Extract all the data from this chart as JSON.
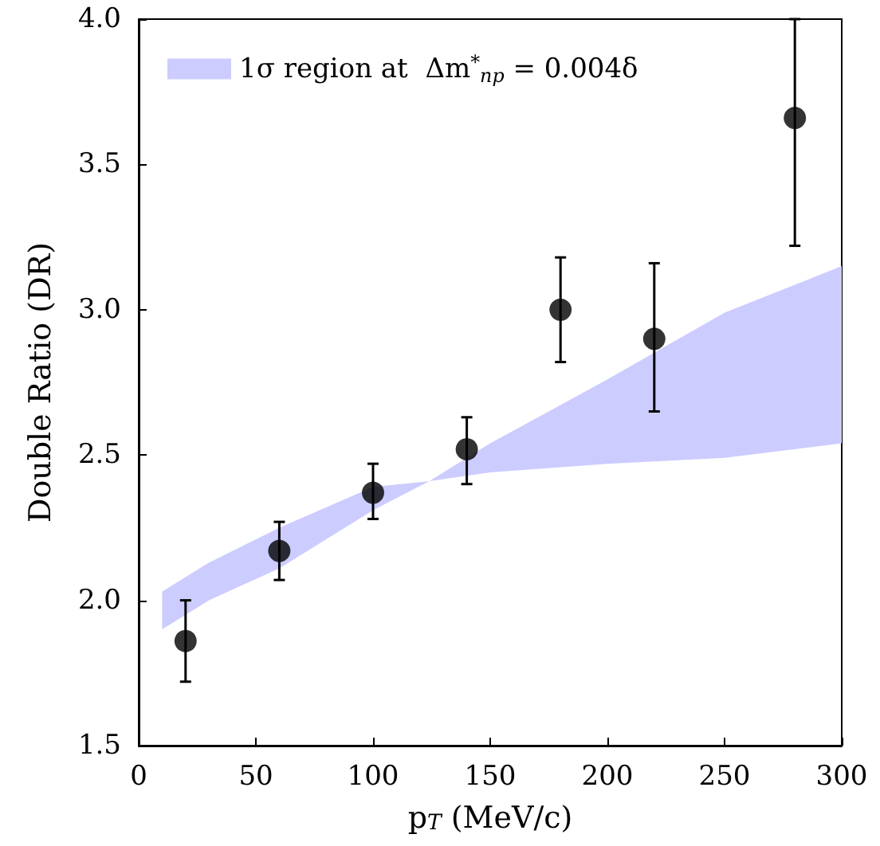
{
  "chart_data": {
    "type": "scatter",
    "xlabel": "p$_{T}$ (MeV/c)",
    "ylabel": "Double Ratio (DR)",
    "x": [
      20,
      60,
      100,
      140,
      180,
      220,
      280
    ],
    "series": [
      {
        "type": "area",
        "name": "1σ region at  Δm$^{*}$$_{np}$ = 0.004δ",
        "color": "#ccccff",
        "x": [
          10,
          30,
          60,
          100,
          124,
          150,
          200,
          250,
          300
        ],
        "values": [
          null,
          null,
          null,
          null,
          null,
          null,
          null,
          null,
          null
        ],
        "lower": [
          1.9,
          2.0,
          2.11,
          2.31,
          2.41,
          2.44,
          2.47,
          2.49,
          2.54
        ],
        "upper": [
          2.03,
          2.13,
          2.25,
          2.39,
          2.41,
          2.54,
          2.76,
          2.99,
          3.15
        ]
      },
      {
        "type": "scatter",
        "color": "#000000",
        "values": [
          1.86,
          2.17,
          2.37,
          2.52,
          3.0,
          2.9,
          3.66
        ],
        "errors": [
          [
            1.72,
            2.0
          ],
          [
            2.07,
            2.27
          ],
          [
            2.28,
            2.47
          ],
          [
            2.4,
            2.63
          ],
          [
            2.82,
            3.18
          ],
          [
            2.65,
            3.16
          ],
          [
            3.22,
            4.0
          ]
        ]
      }
    ],
    "xlim": [
      0,
      300
    ],
    "xticks": [
      0,
      50,
      100,
      150,
      200,
      250,
      300
    ],
    "ylim": [
      1.5,
      4.0
    ],
    "yticks": [
      1.5,
      {
        "value": 2,
        "label": "2.0"
      },
      2.5,
      {
        "value": 3,
        "label": "3.0"
      },
      3.5,
      {
        "value": 4,
        "label": "4.0"
      }
    ],
    "legend": "top left",
    "marker": "circle",
    "grid": false
  }
}
